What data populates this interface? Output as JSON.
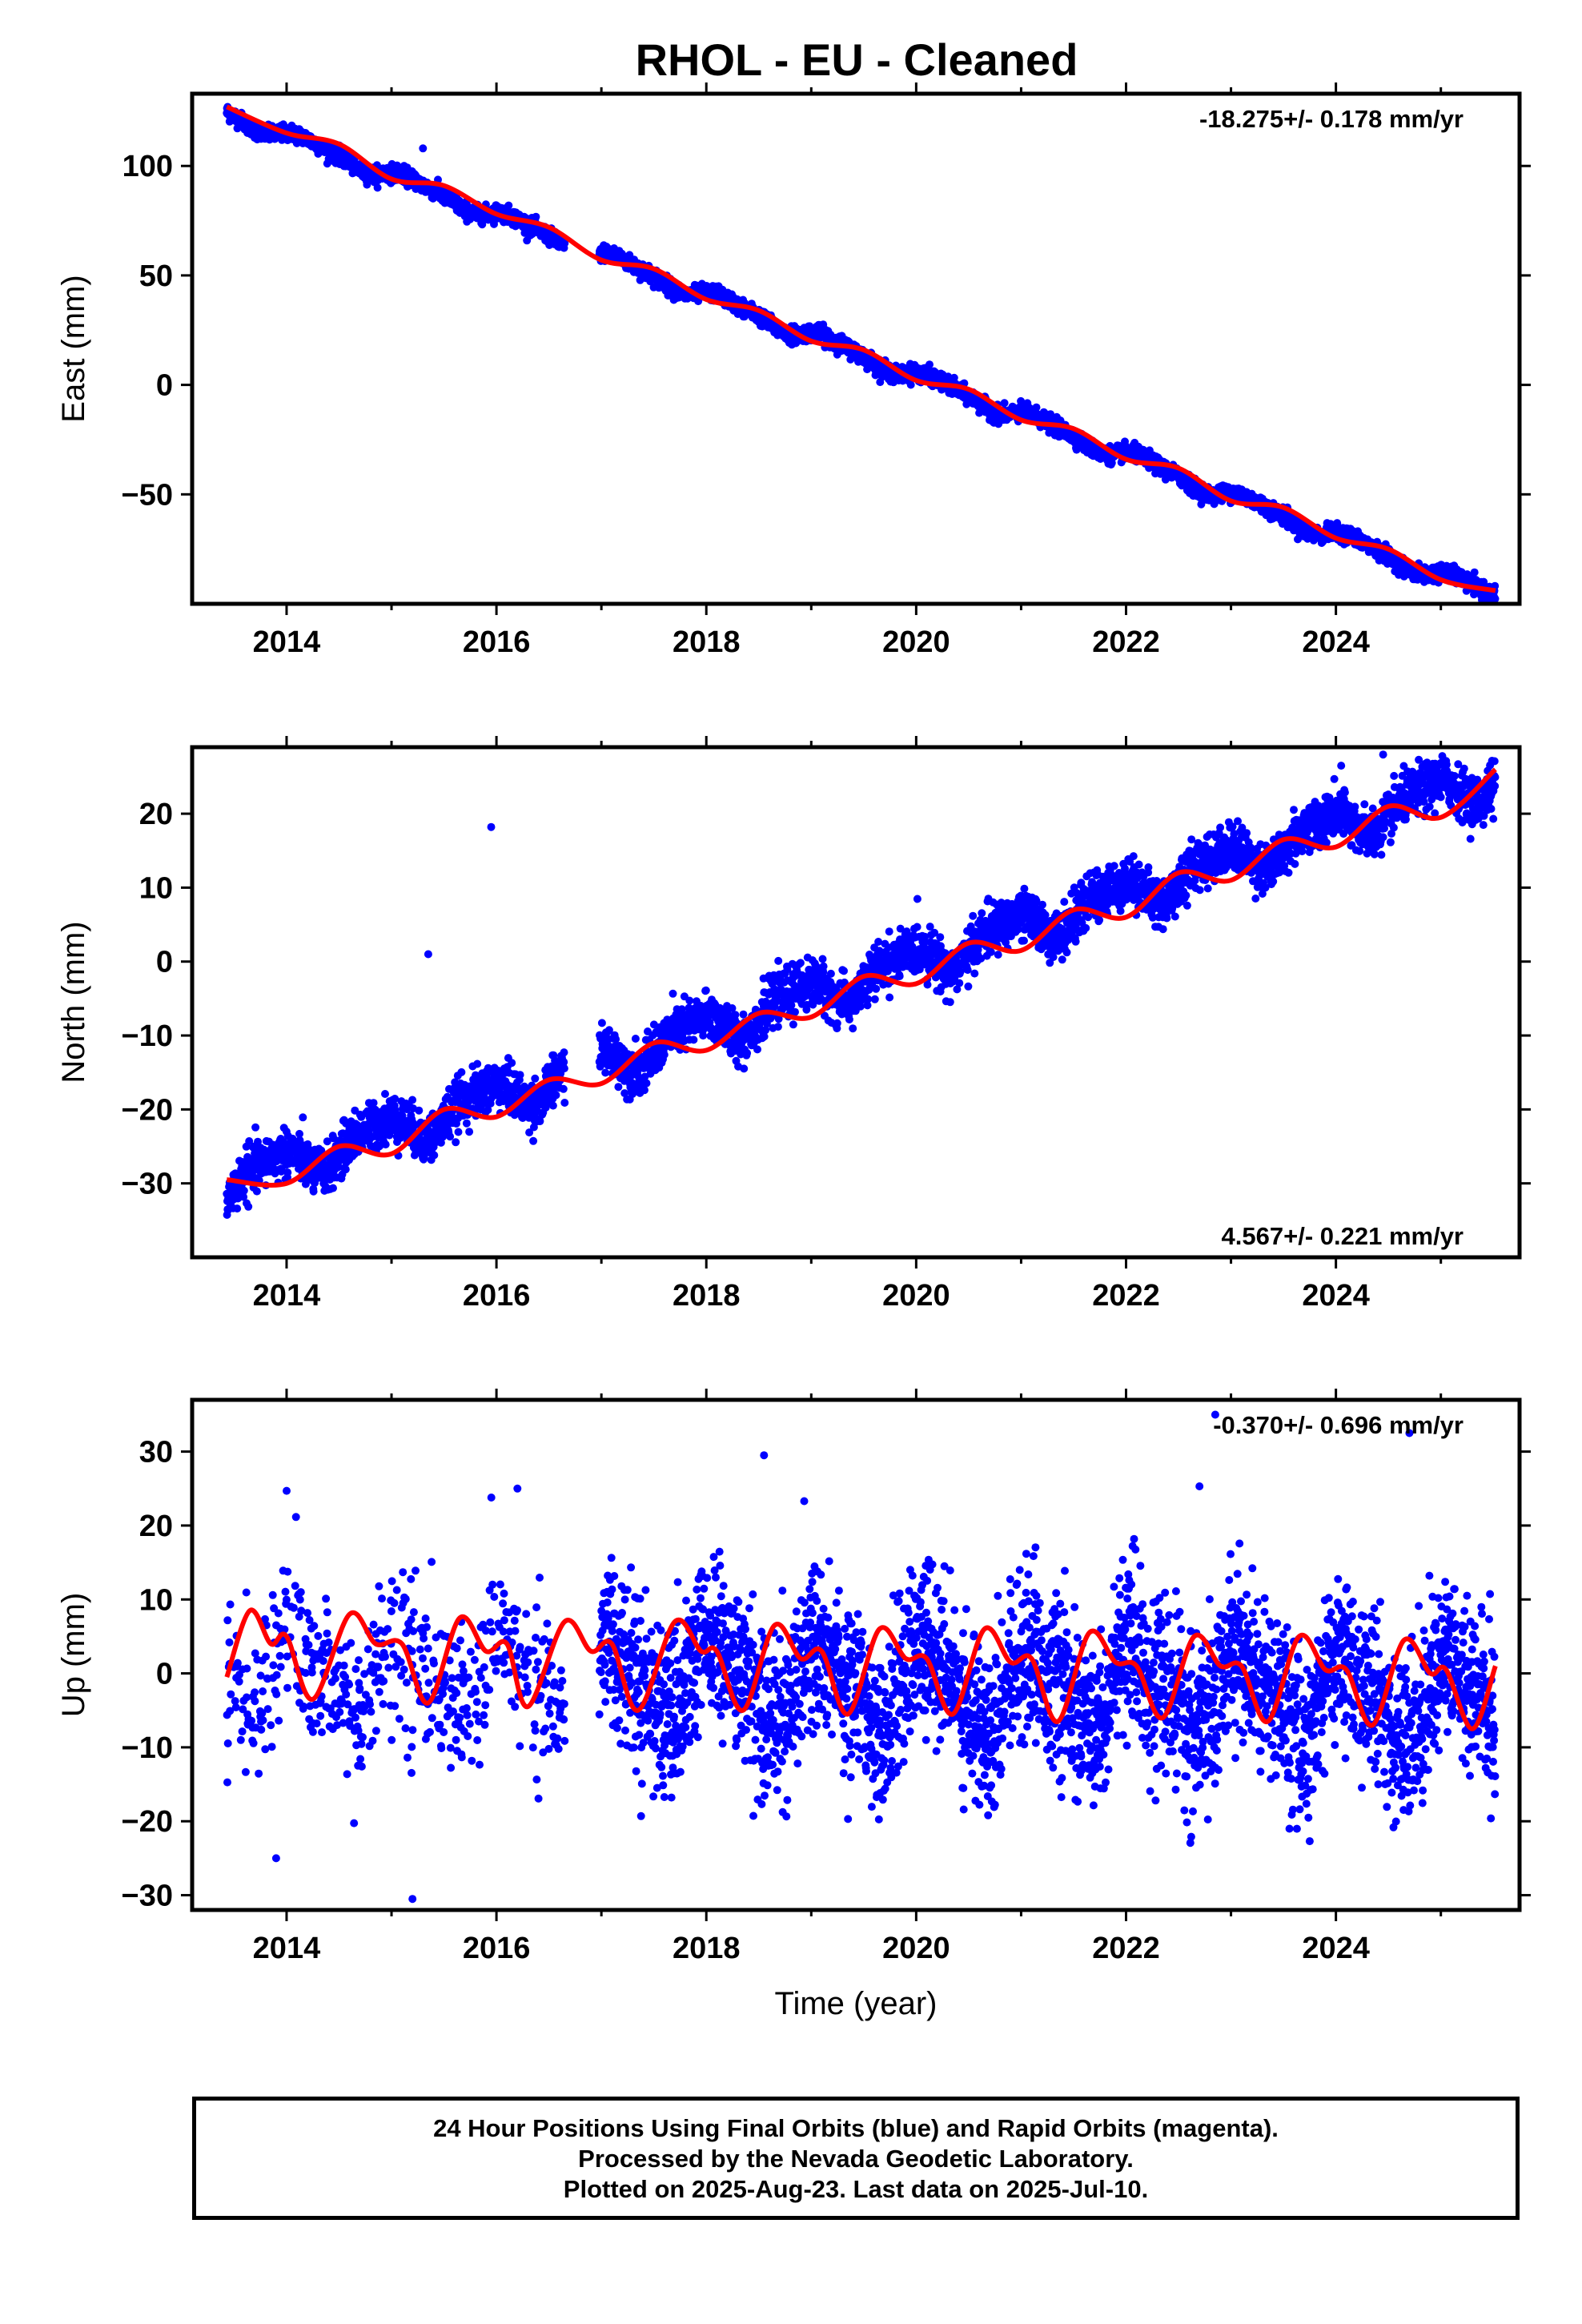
{
  "title": "RHOL  - EU - Cleaned",
  "colors": {
    "points": "#0000ff",
    "fit": "#ff0000",
    "axes": "#000000"
  },
  "footer": {
    "line1": "24 Hour Positions Using Final Orbits (blue) and Rapid Orbits (magenta).",
    "line2": "Processed by the Nevada Geodetic Laboratory.",
    "line3": "Plotted on 2025-Aug-23. Last data on 2025-Jul-10."
  },
  "chart_data": [
    {
      "type": "scatter",
      "name": "east-panel",
      "ylabel": "East (mm)",
      "xlabel": "",
      "rate_text": "-18.275+/- 0.178 mm/yr",
      "rate_position": "top-right",
      "xlim": [
        2013.1,
        2025.75
      ],
      "ylim": [
        -100,
        133
      ],
      "xticks": [
        2014,
        2016,
        2018,
        2020,
        2022,
        2024
      ],
      "yticks": [
        -50,
        0,
        50,
        100
      ],
      "ytick_labels": [
        "−50",
        "0",
        "50",
        "100"
      ],
      "data_range": [
        2013.43,
        2025.52
      ],
      "slope": -18.275,
      "intercept_2013": 132.0,
      "seasonal": {
        "amp1": 2.5,
        "phase1": 0.3,
        "amp2": 0.8,
        "phase2": 1.1
      },
      "scatter_sd": 1.8,
      "gaps": [
        [
          2016.65,
          2016.98
        ]
      ],
      "fit_points": [
        [
          2013.43,
          127
        ],
        [
          2014.0,
          115
        ],
        [
          2014.5,
          110
        ],
        [
          2015.0,
          94
        ],
        [
          2015.5,
          91
        ],
        [
          2016.0,
          78
        ],
        [
          2016.5,
          72
        ],
        [
          2017.0,
          57
        ],
        [
          2017.5,
          53
        ],
        [
          2018.0,
          39
        ],
        [
          2018.5,
          34
        ],
        [
          2019.0,
          20
        ],
        [
          2019.5,
          16
        ],
        [
          2020.0,
          2
        ],
        [
          2020.5,
          -2
        ],
        [
          2021.0,
          -16
        ],
        [
          2021.5,
          -20
        ],
        [
          2022.0,
          -34
        ],
        [
          2022.5,
          -38
        ],
        [
          2023.0,
          -53
        ],
        [
          2023.5,
          -56
        ],
        [
          2024.0,
          -70
        ],
        [
          2024.5,
          -75
        ],
        [
          2025.0,
          -89
        ],
        [
          2025.52,
          -94
        ]
      ],
      "outliers": [
        [
          2015.3,
          108
        ]
      ]
    },
    {
      "type": "scatter",
      "name": "north-panel",
      "ylabel": "North (mm)",
      "xlabel": "",
      "rate_text": "4.567+/- 0.221 mm/yr",
      "rate_position": "bottom-right",
      "xlim": [
        2013.1,
        2025.75
      ],
      "ylim": [
        -40,
        29
      ],
      "xticks": [
        2014,
        2016,
        2018,
        2020,
        2022,
        2024
      ],
      "yticks": [
        -30,
        -20,
        -10,
        0,
        10,
        20
      ],
      "ytick_labels": [
        "−30",
        "−20",
        "−10",
        "0",
        "10",
        "20"
      ],
      "data_range": [
        2013.43,
        2025.52
      ],
      "slope": 4.567,
      "intercept_2013": -32.0,
      "seasonal": {
        "amp1": 2.0,
        "phase1": 2.4,
        "amp2": 0.6,
        "phase2": 0.5
      },
      "scatter_sd": 1.6,
      "gaps": [
        [
          2016.65,
          2016.98
        ]
      ],
      "fit_points": [
        [
          2013.43,
          -29.5
        ],
        [
          2014.0,
          -30
        ],
        [
          2014.5,
          -25
        ],
        [
          2015.0,
          -26
        ],
        [
          2015.5,
          -20
        ],
        [
          2016.0,
          -21
        ],
        [
          2016.5,
          -16
        ],
        [
          2017.0,
          -16.5
        ],
        [
          2017.5,
          -11
        ],
        [
          2018.0,
          -12
        ],
        [
          2018.5,
          -7
        ],
        [
          2019.0,
          -7.5
        ],
        [
          2019.5,
          -2
        ],
        [
          2020.0,
          -3
        ],
        [
          2020.5,
          2.5
        ],
        [
          2021.0,
          1.5
        ],
        [
          2021.5,
          7
        ],
        [
          2022.0,
          6
        ],
        [
          2022.5,
          12
        ],
        [
          2023.0,
          11
        ],
        [
          2023.5,
          16.5
        ],
        [
          2024.0,
          15.5
        ],
        [
          2024.5,
          21
        ],
        [
          2025.0,
          19.5
        ],
        [
          2025.52,
          26
        ]
      ],
      "outliers": [
        [
          2015.35,
          1
        ],
        [
          2024.05,
          26.5
        ],
        [
          2024.45,
          28
        ],
        [
          2025.5,
          19.3
        ],
        [
          2015.95,
          18.2
        ]
      ]
    },
    {
      "type": "scatter",
      "name": "up-panel",
      "ylabel": "Up (mm)",
      "xlabel": "Time (year)",
      "rate_text": "-0.370+/- 0.696 mm/yr",
      "rate_position": "top-right",
      "xlim": [
        2013.1,
        2025.75
      ],
      "ylim": [
        -32,
        37
      ],
      "xticks": [
        2014,
        2016,
        2018,
        2020,
        2022,
        2024
      ],
      "yticks": [
        -30,
        -20,
        -10,
        0,
        10,
        20,
        30
      ],
      "ytick_labels": [
        "−30",
        "−20",
        "−10",
        "0",
        "10",
        "20",
        "30"
      ],
      "data_range": [
        2013.43,
        2025.52
      ],
      "slope": -0.37,
      "intercept_2013": 1.0,
      "seasonal": {
        "amp1": 5.0,
        "phase1": 0.9,
        "amp2": 1.5,
        "phase2": 2.0
      },
      "scatter_sd": 5.5,
      "gaps": [
        [
          2016.65,
          2016.98
        ]
      ],
      "fit_points": [
        [
          2013.43,
          -0.5
        ],
        [
          2013.65,
          8.5
        ],
        [
          2013.85,
          4
        ],
        [
          2014.0,
          5
        ],
        [
          2014.25,
          -3.5
        ],
        [
          2014.6,
          8
        ],
        [
          2014.85,
          4
        ],
        [
          2015.1,
          4
        ],
        [
          2015.35,
          -4
        ],
        [
          2015.65,
          7.5
        ],
        [
          2015.9,
          3
        ],
        [
          2016.1,
          4
        ],
        [
          2016.3,
          -4.5
        ],
        [
          2016.65,
          7
        ],
        [
          2016.9,
          3
        ],
        [
          2017.1,
          4
        ],
        [
          2017.35,
          -5
        ],
        [
          2017.7,
          7
        ],
        [
          2017.95,
          3
        ],
        [
          2018.1,
          3
        ],
        [
          2018.35,
          -5
        ],
        [
          2018.65,
          6.5
        ],
        [
          2018.9,
          2
        ],
        [
          2019.1,
          3
        ],
        [
          2019.35,
          -5.5
        ],
        [
          2019.65,
          6
        ],
        [
          2019.9,
          2
        ],
        [
          2020.1,
          2
        ],
        [
          2020.35,
          -5.5
        ],
        [
          2020.65,
          6
        ],
        [
          2020.9,
          1.5
        ],
        [
          2021.1,
          2
        ],
        [
          2021.35,
          -6.5
        ],
        [
          2021.65,
          5.5
        ],
        [
          2021.9,
          1.5
        ],
        [
          2022.1,
          1
        ],
        [
          2022.35,
          -6
        ],
        [
          2022.65,
          5
        ],
        [
          2022.9,
          1
        ],
        [
          2023.1,
          1
        ],
        [
          2023.35,
          -6.5
        ],
        [
          2023.65,
          5
        ],
        [
          2023.9,
          0.5
        ],
        [
          2024.1,
          0.5
        ],
        [
          2024.35,
          -7
        ],
        [
          2024.65,
          4.5
        ],
        [
          2024.9,
          0
        ],
        [
          2025.05,
          0.5
        ],
        [
          2025.3,
          -7.5
        ],
        [
          2025.52,
          1
        ]
      ],
      "outliers": [
        [
          2014.0,
          24.7
        ],
        [
          2016.2,
          25
        ],
        [
          2018.55,
          29.5
        ],
        [
          2022.7,
          25.3
        ],
        [
          2022.85,
          35
        ],
        [
          2024.7,
          32.5
        ],
        [
          2015.2,
          -30.5
        ],
        [
          2013.9,
          -25
        ],
        [
          2023.75,
          -22.7
        ],
        [
          2019.35,
          -19.7
        ]
      ]
    }
  ]
}
